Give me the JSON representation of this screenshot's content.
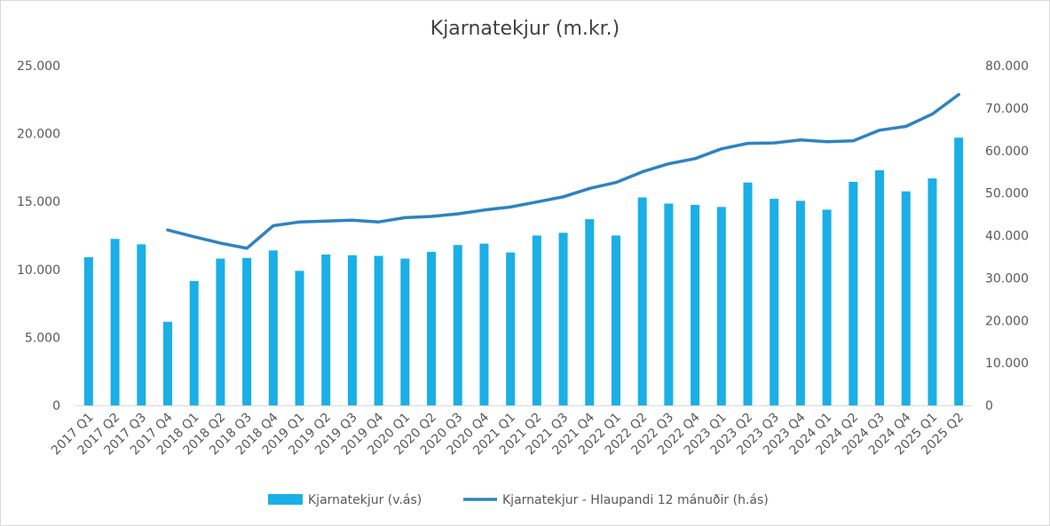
{
  "chart_data": {
    "type": "bar",
    "title": "Kjarnatekjur (m.kr.)",
    "categories": [
      "2017 Q1",
      "2017 Q2",
      "2017 Q3",
      "2017 Q4",
      "2018 Q1",
      "2018 Q2",
      "2018 Q3",
      "2018 Q4",
      "2019 Q1",
      "2019 Q2",
      "2019 Q3",
      "2019 Q4",
      "2020 Q1",
      "2020 Q2",
      "2020 Q3",
      "2020 Q4",
      "2021 Q1",
      "2021 Q2",
      "2021 Q3",
      "2021 Q4",
      "2022 Q1",
      "2022 Q2",
      "2022 Q3",
      "2022 Q4",
      "2023 Q1",
      "2023 Q2",
      "2023 Q3",
      "2023 Q4",
      "2024 Q1",
      "2024 Q2",
      "2024 Q3",
      "2024 Q4",
      "2025 Q1",
      "2025 Q2"
    ],
    "series": [
      {
        "name": "Kjarnatekjur (v.ás)",
        "type": "bar",
        "axis": "left",
        "color": "#1aafe6",
        "values": [
          10900,
          12250,
          11850,
          6150,
          9150,
          10800,
          10850,
          11400,
          9900,
          11100,
          11050,
          11000,
          10800,
          11300,
          11800,
          11900,
          11250,
          12500,
          12700,
          13700,
          12500,
          15300,
          14850,
          14750,
          14600,
          16400,
          15200,
          15050,
          14400,
          16450,
          17300,
          15750,
          16700,
          19700
        ]
      },
      {
        "name": "Kjarnatekjur - Hlaupandi 12 mánuðir (h.ás)",
        "type": "line",
        "axis": "right",
        "color": "#2e83c1",
        "values": [
          null,
          null,
          null,
          41300,
          39700,
          38200,
          37000,
          42300,
          43200,
          43400,
          43600,
          43200,
          44200,
          44500,
          45100,
          46000,
          46700,
          47900,
          49100,
          51100,
          52500,
          55000,
          56900,
          58100,
          60400,
          61700,
          61800,
          62500,
          62100,
          62300,
          64800,
          65700,
          68600,
          73200
        ]
      }
    ],
    "y_left": {
      "min": 0,
      "max": 25000,
      "ticks": [
        "0",
        "5.000",
        "10.000",
        "15.000",
        "20.000",
        "25.000"
      ]
    },
    "y_right": {
      "min": 0,
      "max": 80000,
      "ticks": [
        "0",
        "10.000",
        "20.000",
        "30.000",
        "40.000",
        "50.000",
        "60.000",
        "70.000",
        "80.000"
      ]
    },
    "grid": false,
    "legend_position": "bottom"
  }
}
